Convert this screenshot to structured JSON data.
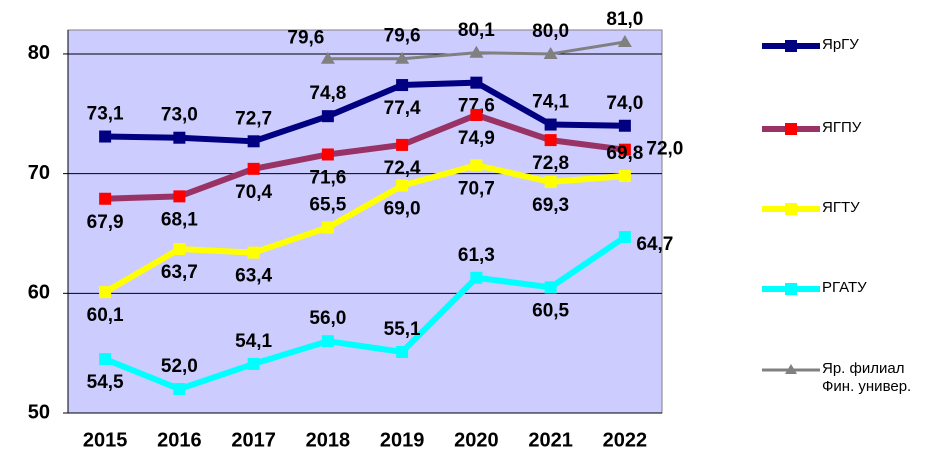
{
  "chart_data": {
    "type": "line",
    "categories": [
      "2015",
      "2016",
      "2017",
      "2018",
      "2019",
      "2020",
      "2021",
      "2022"
    ],
    "ylim": [
      50,
      82
    ],
    "yticks": [
      50,
      60,
      70,
      80
    ],
    "grid": true,
    "plot_background": "#ccccff",
    "series": [
      {
        "name": "ЯрГУ",
        "color": "#000080",
        "marker_color": "#000080",
        "marker": "square",
        "values": [
          73.1,
          73.0,
          72.7,
          74.8,
          77.4,
          77.6,
          74.1,
          74.0
        ],
        "value_labels": [
          "73,1",
          "73,0",
          "72,7",
          "74,8",
          "77,4",
          "77,6",
          "74,1",
          "74,0"
        ]
      },
      {
        "name": "ЯГПУ",
        "color": "#993366",
        "marker_color": "#ff0000",
        "marker": "square",
        "values": [
          67.9,
          68.1,
          70.4,
          71.6,
          72.4,
          74.9,
          72.8,
          72.0
        ],
        "value_labels": [
          "67,9",
          "68,1",
          "70,4",
          "71,6",
          "72,4",
          "74,9",
          "72,8",
          "72,0"
        ]
      },
      {
        "name": "ЯГТУ",
        "color": "#ffff00",
        "marker_color": "#ffff00",
        "marker": "square",
        "values": [
          60.1,
          63.7,
          63.4,
          65.5,
          69.0,
          70.7,
          69.3,
          69.8
        ],
        "value_labels": [
          "60,1",
          "63,7",
          "63,4",
          "65,5",
          "69,0",
          "70,7",
          "69,3",
          "69,8"
        ]
      },
      {
        "name": "РГАТУ",
        "color": "#00ffff",
        "marker_color": "#00ffff",
        "marker": "square",
        "values": [
          54.5,
          52.0,
          54.1,
          56.0,
          55.1,
          61.3,
          60.5,
          64.7
        ],
        "value_labels": [
          "54,5",
          "52,0",
          "54,1",
          "56,0",
          "55,1",
          "61,3",
          "60,5",
          "64,7"
        ]
      },
      {
        "name": "Яр. филиал Фин. универ.",
        "color": "#808080",
        "marker_color": "#808080",
        "marker": "triangle",
        "values": [
          null,
          null,
          null,
          79.6,
          79.6,
          80.1,
          80.0,
          81.0
        ],
        "value_labels": [
          null,
          null,
          null,
          "79,6",
          "79,6",
          "80,1",
          "80,0",
          "81,0"
        ]
      }
    ]
  }
}
